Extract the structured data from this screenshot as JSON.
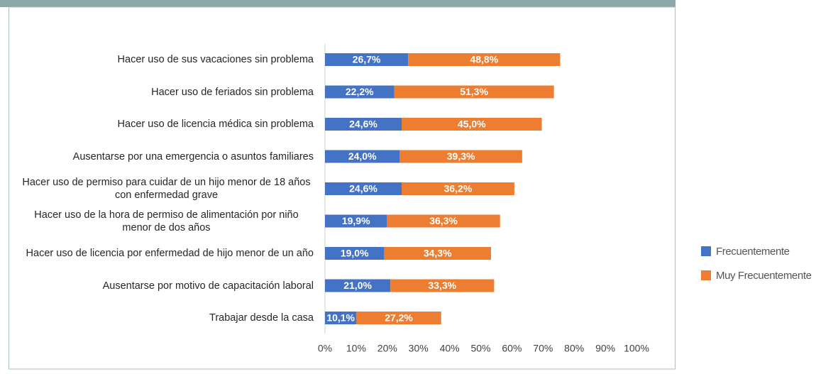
{
  "chart_data": {
    "type": "stacked_bar_horizontal",
    "categories": [
      "Hacer uso de sus vacaciones sin problema",
      "Hacer uso de feriados sin problema",
      "Hacer uso de licencia médica sin problema",
      "Ausentarse por una emergencia o asuntos familiares",
      "Hacer uso de permiso para cuidar de un hijo menor de 18 años con enfermedad grave",
      "Hacer uso de la hora de permiso de alimentación por niño menor de dos años",
      "Hacer uso de licencia por enfermedad de hijo menor de un año",
      "Ausentarse por motivo de capacitación laboral",
      "Trabajar desde la casa"
    ],
    "series": [
      {
        "name": "Frecuentemente",
        "color": "#4472c4",
        "values": [
          26.7,
          22.2,
          24.6,
          24.0,
          24.6,
          19.9,
          19.0,
          21.0,
          10.1
        ],
        "value_labels": [
          "26,7%",
          "22,2%",
          "24,6%",
          "24,0%",
          "24,6%",
          "19,9%",
          "19,0%",
          "21,0%",
          "10,1%"
        ]
      },
      {
        "name": "Muy Frecuentemente",
        "color": "#ed7d31",
        "values": [
          48.8,
          51.3,
          45.0,
          39.3,
          36.2,
          36.3,
          34.3,
          33.3,
          27.2
        ],
        "value_labels": [
          "48,8%",
          "51,3%",
          "45,0%",
          "39,3%",
          "36,2%",
          "36,3%",
          "34,3%",
          "33,3%",
          "27,2%"
        ]
      }
    ],
    "xlim": [
      0,
      100
    ],
    "xticks": [
      {
        "value": 0,
        "label": "0%"
      },
      {
        "value": 10,
        "label": "10%"
      },
      {
        "value": 20,
        "label": "20%"
      },
      {
        "value": 30,
        "label": "30%"
      },
      {
        "value": 40,
        "label": "40%"
      },
      {
        "value": 50,
        "label": "50%"
      },
      {
        "value": 60,
        "label": "60%"
      },
      {
        "value": 70,
        "label": "70%"
      },
      {
        "value": 80,
        "label": "80%"
      },
      {
        "value": 90,
        "label": "90%"
      },
      {
        "value": 100,
        "label": "100%"
      }
    ],
    "grid": false,
    "legend": "right"
  }
}
